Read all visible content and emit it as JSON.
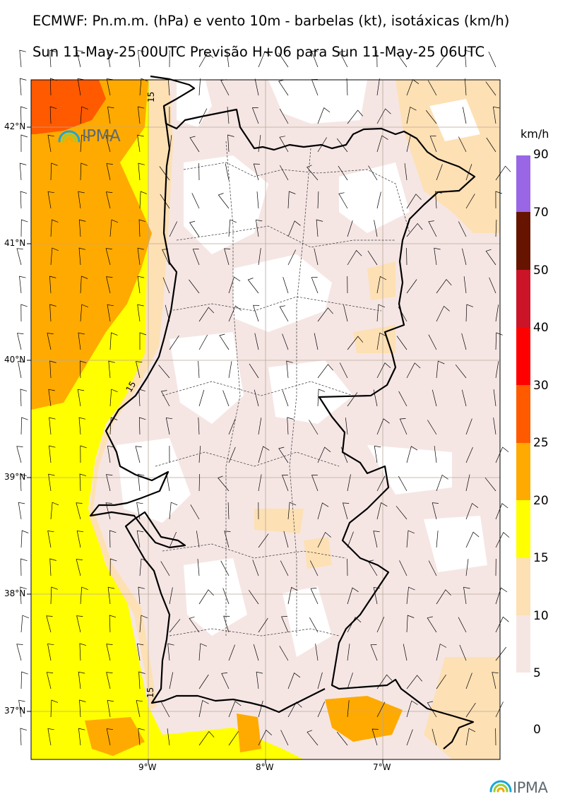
{
  "title_line1": "ECMWF: Pn.m.m. (hPa) e vento 10m - barbelas (kt), isotáxicas (km/h)",
  "title_line2": "Sun 11-May-25 00UTC Previsão H+06 para Sun 11-May-25 06UTC",
  "lat_labels": [
    "42°N",
    "41°N",
    "40°N",
    "39°N",
    "38°N",
    "37°N"
  ],
  "lon_labels": [
    "9°W",
    "8°W",
    "7°W"
  ],
  "contour_label": "15",
  "colorbar": {
    "unit": "km/h",
    "labels": [
      "90",
      "70",
      "50",
      "40",
      "30",
      "25",
      "20",
      "15",
      "10",
      "5",
      "0"
    ],
    "colors": [
      "#9966e6",
      "#661400",
      "#cc1428",
      "#ff0000",
      "#ff5a00",
      "#ffaa00",
      "#ffff00",
      "#fde0b4",
      "#f5e6e4",
      "#ffffff"
    ]
  },
  "logo_text": "IPMA",
  "field_colors": {
    "calm": "#ffffff",
    "light": "#f5e6e4",
    "moderate": "#fde0b4",
    "fresh": "#ffff00",
    "strong": "#ffaa00",
    "very_strong": "#ff5a00"
  }
}
